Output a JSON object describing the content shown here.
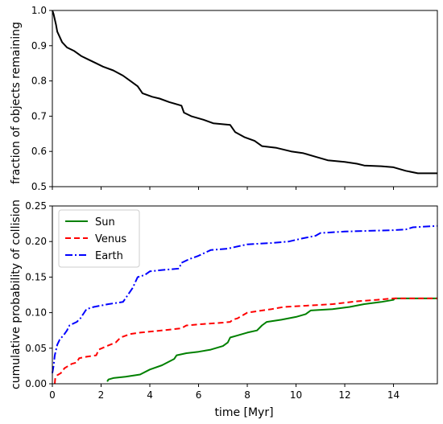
{
  "chart_data": [
    {
      "type": "line",
      "xlabel": "",
      "ylabel": "fraction of objects remaining",
      "xlim": [
        0,
        15.8
      ],
      "ylim": [
        0.5,
        1.0
      ],
      "xticks": [
        0,
        2,
        4,
        6,
        8,
        10,
        12,
        14
      ],
      "xtick_labels_shown": false,
      "yticks": [
        0.5,
        0.6,
        0.7,
        0.8,
        0.9,
        1.0
      ],
      "ytick_labels": [
        "0.5",
        "0.6",
        "0.7",
        "0.8",
        "0.9",
        "1.0"
      ],
      "grid": false,
      "series": [
        {
          "color": "#000000",
          "style": "solid",
          "points": [
            [
              0,
              1.0
            ],
            [
              0.05,
              0.99
            ],
            [
              0.1,
              0.975
            ],
            [
              0.15,
              0.96
            ],
            [
              0.2,
              0.94
            ],
            [
              0.3,
              0.925
            ],
            [
              0.4,
              0.91
            ],
            [
              0.6,
              0.895
            ],
            [
              0.9,
              0.885
            ],
            [
              1.2,
              0.87
            ],
            [
              1.5,
              0.86
            ],
            [
              1.8,
              0.85
            ],
            [
              2.1,
              0.84
            ],
            [
              2.5,
              0.83
            ],
            [
              2.9,
              0.815
            ],
            [
              3.2,
              0.8
            ],
            [
              3.5,
              0.785
            ],
            [
              3.7,
              0.765
            ],
            [
              4.1,
              0.755
            ],
            [
              4.4,
              0.75
            ],
            [
              4.8,
              0.74
            ],
            [
              5.3,
              0.73
            ],
            [
              5.4,
              0.71
            ],
            [
              5.7,
              0.7
            ],
            [
              6.2,
              0.69
            ],
            [
              6.6,
              0.68
            ],
            [
              7.3,
              0.675
            ],
            [
              7.5,
              0.655
            ],
            [
              7.9,
              0.64
            ],
            [
              8.3,
              0.63
            ],
            [
              8.6,
              0.615
            ],
            [
              9.2,
              0.61
            ],
            [
              9.8,
              0.6
            ],
            [
              10.3,
              0.595
            ],
            [
              10.8,
              0.585
            ],
            [
              11.3,
              0.575
            ],
            [
              12.0,
              0.57
            ],
            [
              12.5,
              0.565
            ],
            [
              12.8,
              0.56
            ],
            [
              13.5,
              0.558
            ],
            [
              14.0,
              0.555
            ],
            [
              14.5,
              0.545
            ],
            [
              15.0,
              0.538
            ],
            [
              15.8,
              0.538
            ]
          ]
        }
      ]
    },
    {
      "type": "line",
      "xlabel": "time [Myr]",
      "ylabel": "cumulative probability of collision",
      "xlim": [
        0,
        15.8
      ],
      "ylim": [
        0.0,
        0.25
      ],
      "xticks": [
        0,
        2,
        4,
        6,
        8,
        10,
        12,
        14
      ],
      "xtick_labels": [
        "0",
        "2",
        "4",
        "6",
        "8",
        "10",
        "12",
        "14"
      ],
      "yticks": [
        0.0,
        0.05,
        0.1,
        0.15,
        0.2,
        0.25
      ],
      "ytick_labels": [
        "0.00",
        "0.05",
        "0.10",
        "0.15",
        "0.20",
        "0.25"
      ],
      "grid": false,
      "legend_position": "top-left",
      "series": [
        {
          "name": "Sun",
          "color": "#008000",
          "style": "solid",
          "points": [
            [
              2.25,
              0.003
            ],
            [
              2.3,
              0.006
            ],
            [
              2.5,
              0.008
            ],
            [
              3.0,
              0.01
            ],
            [
              3.6,
              0.013
            ],
            [
              4.0,
              0.02
            ],
            [
              4.5,
              0.026
            ],
            [
              5.0,
              0.035
            ],
            [
              5.1,
              0.04
            ],
            [
              5.5,
              0.043
            ],
            [
              6.0,
              0.045
            ],
            [
              6.5,
              0.048
            ],
            [
              7.0,
              0.053
            ],
            [
              7.2,
              0.058
            ],
            [
              7.3,
              0.065
            ],
            [
              7.6,
              0.068
            ],
            [
              8.0,
              0.072
            ],
            [
              8.4,
              0.075
            ],
            [
              8.6,
              0.082
            ],
            [
              8.8,
              0.087
            ],
            [
              9.4,
              0.09
            ],
            [
              10.0,
              0.094
            ],
            [
              10.4,
              0.098
            ],
            [
              10.6,
              0.103
            ],
            [
              11.5,
              0.105
            ],
            [
              12.2,
              0.108
            ],
            [
              12.8,
              0.112
            ],
            [
              13.5,
              0.115
            ],
            [
              14.0,
              0.118
            ],
            [
              14.05,
              0.12
            ],
            [
              15.8,
              0.12
            ]
          ]
        },
        {
          "name": "Venus",
          "color": "#ff0000",
          "style": "dashed",
          "points": [
            [
              0.1,
              0.0
            ],
            [
              0.12,
              0.008
            ],
            [
              0.2,
              0.012
            ],
            [
              0.35,
              0.015
            ],
            [
              0.5,
              0.022
            ],
            [
              0.8,
              0.028
            ],
            [
              1.0,
              0.03
            ],
            [
              1.1,
              0.036
            ],
            [
              1.4,
              0.038
            ],
            [
              1.8,
              0.04
            ],
            [
              1.9,
              0.048
            ],
            [
              2.3,
              0.054
            ],
            [
              2.6,
              0.058
            ],
            [
              2.8,
              0.065
            ],
            [
              3.2,
              0.07
            ],
            [
              3.6,
              0.072
            ],
            [
              4.2,
              0.074
            ],
            [
              4.8,
              0.076
            ],
            [
              5.3,
              0.078
            ],
            [
              5.5,
              0.082
            ],
            [
              6.2,
              0.084
            ],
            [
              7.0,
              0.086
            ],
            [
              7.3,
              0.087
            ],
            [
              7.4,
              0.09
            ],
            [
              7.6,
              0.092
            ],
            [
              7.8,
              0.096
            ],
            [
              8.0,
              0.1
            ],
            [
              8.4,
              0.102
            ],
            [
              9.0,
              0.105
            ],
            [
              9.5,
              0.108
            ],
            [
              10.5,
              0.11
            ],
            [
              11.5,
              0.112
            ],
            [
              12.5,
              0.116
            ],
            [
              13.3,
              0.118
            ],
            [
              14.0,
              0.12
            ],
            [
              15.8,
              0.12
            ]
          ]
        },
        {
          "name": "Earth",
          "color": "#0000ff",
          "style": "dashdot",
          "points": [
            [
              0,
              0.015
            ],
            [
              0.05,
              0.025
            ],
            [
              0.1,
              0.04
            ],
            [
              0.2,
              0.055
            ],
            [
              0.3,
              0.062
            ],
            [
              0.5,
              0.07
            ],
            [
              0.6,
              0.075
            ],
            [
              0.7,
              0.082
            ],
            [
              1.0,
              0.087
            ],
            [
              1.15,
              0.092
            ],
            [
              1.4,
              0.105
            ],
            [
              1.7,
              0.108
            ],
            [
              2.3,
              0.112
            ],
            [
              2.9,
              0.115
            ],
            [
              3.1,
              0.125
            ],
            [
              3.3,
              0.135
            ],
            [
              3.5,
              0.15
            ],
            [
              3.8,
              0.153
            ],
            [
              4.0,
              0.158
            ],
            [
              4.5,
              0.16
            ],
            [
              5.2,
              0.162
            ],
            [
              5.3,
              0.17
            ],
            [
              5.6,
              0.175
            ],
            [
              6.0,
              0.18
            ],
            [
              6.5,
              0.188
            ],
            [
              7.2,
              0.19
            ],
            [
              8.0,
              0.196
            ],
            [
              9.0,
              0.198
            ],
            [
              9.7,
              0.2
            ],
            [
              10.2,
              0.204
            ],
            [
              10.8,
              0.208
            ],
            [
              11.0,
              0.212
            ],
            [
              12.0,
              0.214
            ],
            [
              13.0,
              0.215
            ],
            [
              14.0,
              0.216
            ],
            [
              14.5,
              0.217
            ],
            [
              14.8,
              0.22
            ],
            [
              15.8,
              0.222
            ]
          ]
        }
      ]
    }
  ]
}
